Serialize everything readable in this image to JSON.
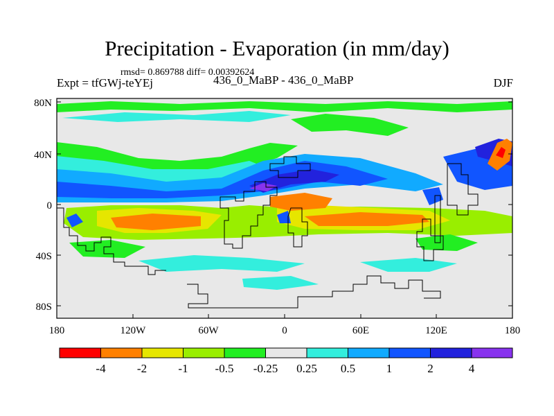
{
  "title": "Precipitation - Evaporation (in mm/day)",
  "stats": "rmsd= 0.869788 diff= 0.00392624",
  "experiment": "Expt = tfGWj-teYEj",
  "cases": "436_0_MaBP - 436_0_MaBP",
  "season": "DJF",
  "y_ticks": [
    "80N",
    "40N",
    "0",
    "40S",
    "80S"
  ],
  "x_ticks": [
    "180",
    "120W",
    "60W",
    "0",
    "60E",
    "120E",
    "180"
  ],
  "colorbar": {
    "colors": [
      "#ff0000",
      "#ff8000",
      "#e6e600",
      "#99ee00",
      "#22ee22",
      "#e8e8e8",
      "#33eedd",
      "#11aaff",
      "#1155ff",
      "#2222dd",
      "#8833ee"
    ],
    "labels": [
      "-4",
      "-2",
      "-1",
      "-0.5",
      "-0.25",
      "0.25",
      "0.5",
      "1",
      "2",
      "4"
    ]
  }
}
